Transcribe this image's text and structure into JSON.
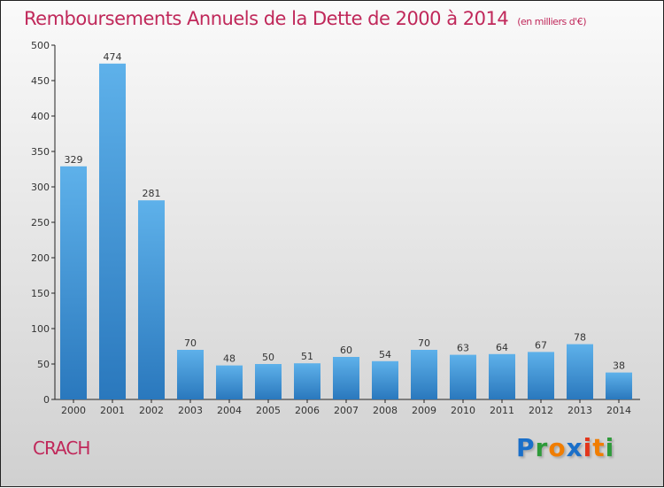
{
  "chart_data": {
    "type": "bar",
    "title": "Remboursements Annuels de la Dette de 2000 à 2014",
    "unit_label": "(en milliers d'€)",
    "categories": [
      "2000",
      "2001",
      "2002",
      "2003",
      "2004",
      "2005",
      "2006",
      "2007",
      "2008",
      "2009",
      "2010",
      "2011",
      "2012",
      "2013",
      "2014"
    ],
    "values": [
      329,
      474,
      281,
      70,
      48,
      50,
      51,
      60,
      54,
      70,
      63,
      64,
      67,
      78,
      38
    ],
    "ylim": [
      0,
      500
    ],
    "yticks": [
      0,
      50,
      100,
      150,
      200,
      250,
      300,
      350,
      400,
      450,
      500
    ],
    "xlabel": "",
    "ylabel": "",
    "bar_color": "#3d8fd6"
  },
  "town": "CRACH",
  "logo": {
    "letters": [
      "P",
      "r",
      "o",
      "x",
      "i",
      "t",
      "i"
    ],
    "colors": [
      "#1a6fc9",
      "#2e9a3a",
      "#f07d00",
      "#1a6fc9",
      "#e3351b",
      "#f07d00",
      "#2e9a3a"
    ]
  }
}
